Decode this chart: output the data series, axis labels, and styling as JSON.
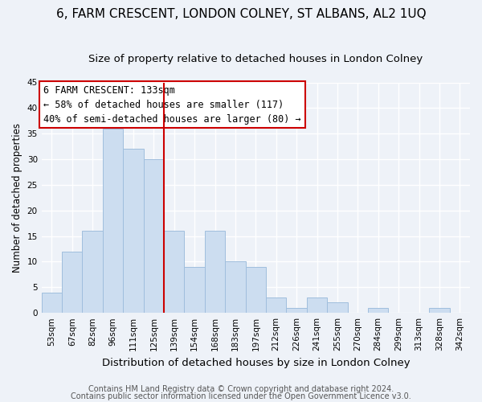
{
  "title": "6, FARM CRESCENT, LONDON COLNEY, ST ALBANS, AL2 1UQ",
  "subtitle": "Size of property relative to detached houses in London Colney",
  "xlabel": "Distribution of detached houses by size in London Colney",
  "ylabel": "Number of detached properties",
  "bar_color": "#ccddf0",
  "bar_edge_color": "#a0bedd",
  "categories": [
    "53sqm",
    "67sqm",
    "82sqm",
    "96sqm",
    "111sqm",
    "125sqm",
    "139sqm",
    "154sqm",
    "168sqm",
    "183sqm",
    "197sqm",
    "212sqm",
    "226sqm",
    "241sqm",
    "255sqm",
    "270sqm",
    "284sqm",
    "299sqm",
    "313sqm",
    "328sqm",
    "342sqm"
  ],
  "values": [
    4,
    12,
    16,
    36,
    32,
    30,
    16,
    9,
    16,
    10,
    9,
    3,
    1,
    3,
    2,
    0,
    1,
    0,
    0,
    1,
    0
  ],
  "vline_x": 5.5,
  "vline_color": "#cc0000",
  "ylim": [
    0,
    45
  ],
  "yticks": [
    0,
    5,
    10,
    15,
    20,
    25,
    30,
    35,
    40,
    45
  ],
  "annotation_title": "6 FARM CRESCENT: 133sqm",
  "annotation_line1": "← 58% of detached houses are smaller (117)",
  "annotation_line2": "40% of semi-detached houses are larger (80) →",
  "annotation_box_color": "#ffffff",
  "annotation_box_edge": "#cc0000",
  "footnote1": "Contains HM Land Registry data © Crown copyright and database right 2024.",
  "footnote2": "Contains public sector information licensed under the Open Government Licence v3.0.",
  "background_color": "#eef2f8",
  "grid_color": "#ffffff",
  "title_fontsize": 11,
  "subtitle_fontsize": 9.5,
  "xlabel_fontsize": 9.5,
  "ylabel_fontsize": 8.5,
  "tick_fontsize": 7.5,
  "annotation_fontsize": 8.5,
  "footnote_fontsize": 7
}
